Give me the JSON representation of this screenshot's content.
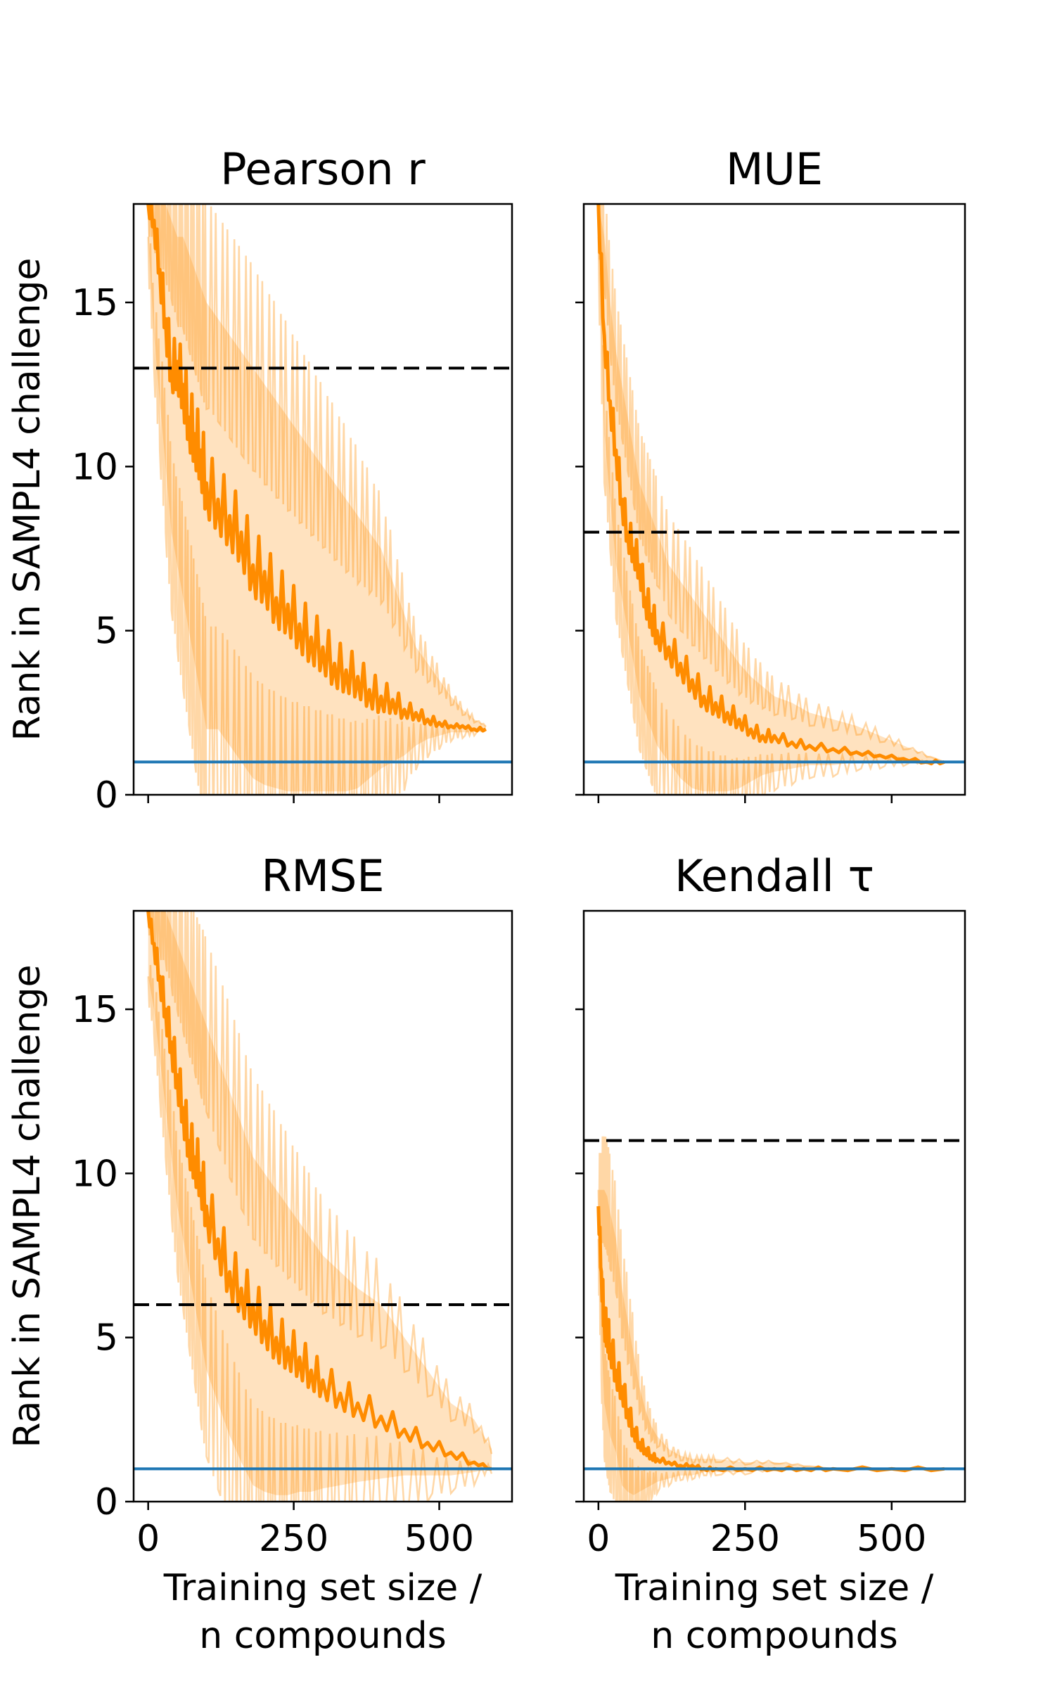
{
  "chart_data": [
    {
      "type": "line",
      "title": "Pearson r",
      "xlabel": "",
      "ylabel": "Rank in SAMPL4 challenge",
      "xlim": [
        -25,
        625
      ],
      "ylim": [
        0,
        18
      ],
      "xticks": [
        0,
        250,
        500
      ],
      "yticks": [
        0,
        5,
        10,
        15
      ],
      "show_xtick_labels": false,
      "show_ytick_labels": true,
      "reference_lines": [
        {
          "style": "dashed",
          "color": "#000000",
          "y": 13
        },
        {
          "style": "solid",
          "color": "#1f77b4",
          "y": 1
        }
      ],
      "series": [
        {
          "color": "#ff8c00",
          "x": [
            0,
            10,
            20,
            30,
            40,
            50,
            60,
            70,
            80,
            90,
            100,
            120,
            140,
            160,
            180,
            200,
            220,
            240,
            260,
            280,
            300,
            320,
            340,
            360,
            380,
            400,
            420,
            440,
            460,
            480,
            500,
            520,
            540,
            560,
            580
          ],
          "y": [
            18,
            17.5,
            16,
            14.5,
            13,
            13.2,
            12.5,
            11.5,
            11,
            10.5,
            9.5,
            9,
            8.5,
            8,
            7,
            6.8,
            6,
            5.8,
            5.2,
            4.8,
            4.5,
            4,
            3.8,
            3.6,
            3.2,
            3,
            2.9,
            2.6,
            2.5,
            2.3,
            2.2,
            2.1,
            2.1,
            2.0,
            2.0
          ],
          "lower": [
            17,
            14,
            12,
            10,
            8,
            7,
            6,
            5,
            4,
            3,
            2,
            2,
            1.5,
            1,
            0.5,
            0.3,
            0.2,
            0.1,
            0.1,
            0.1,
            0.1,
            0.1,
            0.1,
            0.2,
            0.5,
            0.8,
            1.0,
            1.2,
            1.5,
            1.7,
            1.8,
            1.9,
            1.9,
            1.9,
            2.0
          ],
          "upper": [
            18,
            18,
            18,
            18,
            17.5,
            17,
            17,
            16.5,
            16,
            15.5,
            15,
            14.5,
            14,
            13.5,
            13,
            12.5,
            12,
            11.5,
            11,
            10.5,
            10,
            9.5,
            9,
            8.5,
            8,
            7.5,
            6.5,
            5.5,
            4.5,
            4,
            3.5,
            3,
            2.6,
            2.3,
            2.1
          ]
        }
      ]
    },
    {
      "type": "line",
      "title": "MUE",
      "xlabel": "",
      "ylabel": "",
      "xlim": [
        -25,
        625
      ],
      "ylim": [
        0,
        18
      ],
      "xticks": [
        0,
        250,
        500
      ],
      "yticks": [
        0,
        5,
        10,
        15
      ],
      "show_xtick_labels": false,
      "show_ytick_labels": false,
      "reference_lines": [
        {
          "style": "dashed",
          "color": "#000000",
          "y": 8
        },
        {
          "style": "solid",
          "color": "#1f77b4",
          "y": 1
        }
      ],
      "series": [
        {
          "color": "#ff8c00",
          "x": [
            0,
            10,
            20,
            30,
            40,
            50,
            60,
            70,
            80,
            90,
            100,
            120,
            140,
            160,
            180,
            200,
            220,
            240,
            260,
            280,
            300,
            330,
            360,
            400,
            440,
            480,
            520,
            560,
            590
          ],
          "y": [
            18,
            14,
            12,
            10.5,
            9,
            8,
            7.5,
            7,
            6,
            5.5,
            5,
            4.5,
            4,
            3.5,
            3,
            2.8,
            2.5,
            2.3,
            2,
            1.8,
            1.8,
            1.6,
            1.5,
            1.4,
            1.3,
            1.2,
            1.1,
            1.0,
            1.0
          ],
          "lower": [
            17,
            11,
            9,
            7,
            6,
            5,
            4,
            3,
            2.5,
            2,
            1.5,
            1,
            0.5,
            0.2,
            0.1,
            0.1,
            0.1,
            0.2,
            0.4,
            0.6,
            0.7,
            0.8,
            0.9,
            0.9,
            1.0,
            1.0,
            1.0,
            1.0,
            1.0
          ],
          "upper": [
            18,
            17,
            15,
            13.5,
            12.5,
            11.5,
            10.5,
            9.5,
            9,
            8.5,
            8,
            7,
            6.5,
            6,
            5.5,
            5,
            4.5,
            4,
            3.6,
            3.3,
            3,
            2.8,
            2.5,
            2.3,
            2.1,
            1.8,
            1.5,
            1.2,
            1.0
          ]
        }
      ]
    },
    {
      "type": "line",
      "title": "RMSE",
      "xlabel": "Training set size /\nn compounds",
      "ylabel": "Rank in SAMPL4 challenge",
      "xlim": [
        -25,
        625
      ],
      "ylim": [
        0,
        18
      ],
      "xticks": [
        0,
        250,
        500
      ],
      "yticks": [
        0,
        5,
        10,
        15
      ],
      "show_xtick_labels": true,
      "show_ytick_labels": true,
      "reference_lines": [
        {
          "style": "dashed",
          "color": "#000000",
          "y": 6
        },
        {
          "style": "solid",
          "color": "#1f77b4",
          "y": 1
        }
      ],
      "series": [
        {
          "color": "#ff8c00",
          "x": [
            0,
            10,
            20,
            30,
            40,
            50,
            60,
            70,
            80,
            90,
            100,
            120,
            140,
            160,
            180,
            200,
            220,
            240,
            260,
            280,
            300,
            330,
            360,
            400,
            440,
            480,
            520,
            560,
            590
          ],
          "y": [
            18,
            17,
            16,
            15,
            14,
            13,
            12,
            11,
            10.5,
            10,
            9,
            8,
            7,
            6.5,
            6,
            5.5,
            5,
            4.7,
            4.4,
            4,
            3.7,
            3.3,
            3,
            2.6,
            2.2,
            1.8,
            1.5,
            1.2,
            1.0
          ],
          "lower": [
            16,
            15,
            13.5,
            12,
            10.5,
            9,
            8,
            7,
            6,
            5,
            4,
            3,
            2,
            1.2,
            0.5,
            0.3,
            0.2,
            0.2,
            0.3,
            0.3,
            0.4,
            0.5,
            0.6,
            0.7,
            0.8,
            0.8,
            0.8,
            0.9,
            1.0
          ],
          "upper": [
            18,
            18,
            18,
            18,
            17.5,
            17,
            16.5,
            16,
            15.5,
            15,
            14.5,
            13.5,
            12.5,
            11.5,
            10.5,
            10,
            9.5,
            9,
            8.5,
            8,
            7.5,
            7,
            6.5,
            6,
            5,
            4,
            3,
            2.5,
            1.6
          ]
        }
      ]
    },
    {
      "type": "line",
      "title": "Kendall τ",
      "xlabel": "Training set size /\nn compounds",
      "ylabel": "",
      "xlim": [
        -25,
        625
      ],
      "ylim": [
        0,
        18
      ],
      "xticks": [
        0,
        250,
        500
      ],
      "yticks": [
        0,
        5,
        10,
        15
      ],
      "show_xtick_labels": true,
      "show_ytick_labels": false,
      "reference_lines": [
        {
          "style": "dashed",
          "color": "#000000",
          "y": 11
        },
        {
          "style": "solid",
          "color": "#1f77b4",
          "y": 1
        }
      ],
      "series": [
        {
          "color": "#ff8c00",
          "x": [
            0,
            5,
            10,
            15,
            20,
            30,
            40,
            50,
            60,
            70,
            80,
            90,
            100,
            120,
            140,
            160,
            180,
            200,
            250,
            300,
            350,
            400,
            500,
            590
          ],
          "y": [
            9,
            7,
            5.5,
            5.2,
            4.8,
            4,
            3.5,
            2.8,
            2.2,
            1.8,
            1.6,
            1.4,
            1.3,
            1.2,
            1.1,
            1.1,
            1.0,
            1.0,
            1.0,
            1.0,
            1.0,
            1.0,
            1.0,
            1.0
          ],
          "lower": [
            8,
            5,
            3,
            2.5,
            2,
            1.5,
            0.5,
            0.3,
            0.2,
            0.3,
            0.4,
            0.5,
            0.6,
            0.7,
            0.8,
            0.8,
            0.9,
            0.9,
            0.9,
            1.0,
            1.0,
            1.0,
            1.0,
            1.0
          ],
          "upper": [
            9.5,
            9.5,
            9.5,
            9.3,
            8.8,
            8,
            6.5,
            5.5,
            4.5,
            3.5,
            2.8,
            2.3,
            2,
            1.6,
            1.4,
            1.3,
            1.3,
            1.3,
            1.2,
            1.2,
            1.1,
            1.0,
            1.0,
            1.0
          ]
        }
      ]
    }
  ]
}
